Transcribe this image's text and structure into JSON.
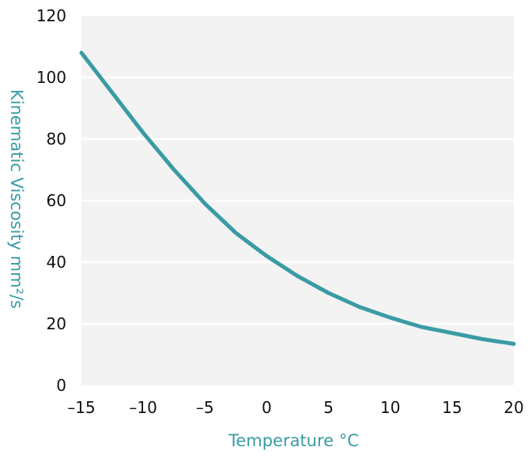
{
  "chart_data": {
    "type": "line",
    "title": "",
    "xlabel": "Temperature °C",
    "ylabel": "Kinematic Viscosity mm²/s",
    "xlim": [
      -15,
      20
    ],
    "ylim": [
      0,
      120
    ],
    "x_ticks": [
      "-15",
      "-10",
      "-5",
      "0",
      "5",
      "10",
      "15",
      "20"
    ],
    "y_ticks": [
      "0",
      "20",
      "40",
      "60",
      "80",
      "100",
      "120"
    ],
    "grid": true,
    "series": [
      {
        "color": "#3a9ba5",
        "x": [
          -15,
          -12.5,
          -10,
          -7.5,
          -5,
          -2.5,
          0,
          2.5,
          5,
          7.5,
          10,
          12.5,
          15,
          17.5,
          20
        ],
        "y": [
          108,
          95,
          82,
          70,
          59,
          49.5,
          42,
          35.5,
          30,
          25.5,
          22,
          19,
          17,
          15,
          13.5
        ]
      }
    ],
    "colors": {
      "plot_bg": "#f3f3f3",
      "grid": "#ffffff",
      "label": "#3a9ba5"
    }
  }
}
